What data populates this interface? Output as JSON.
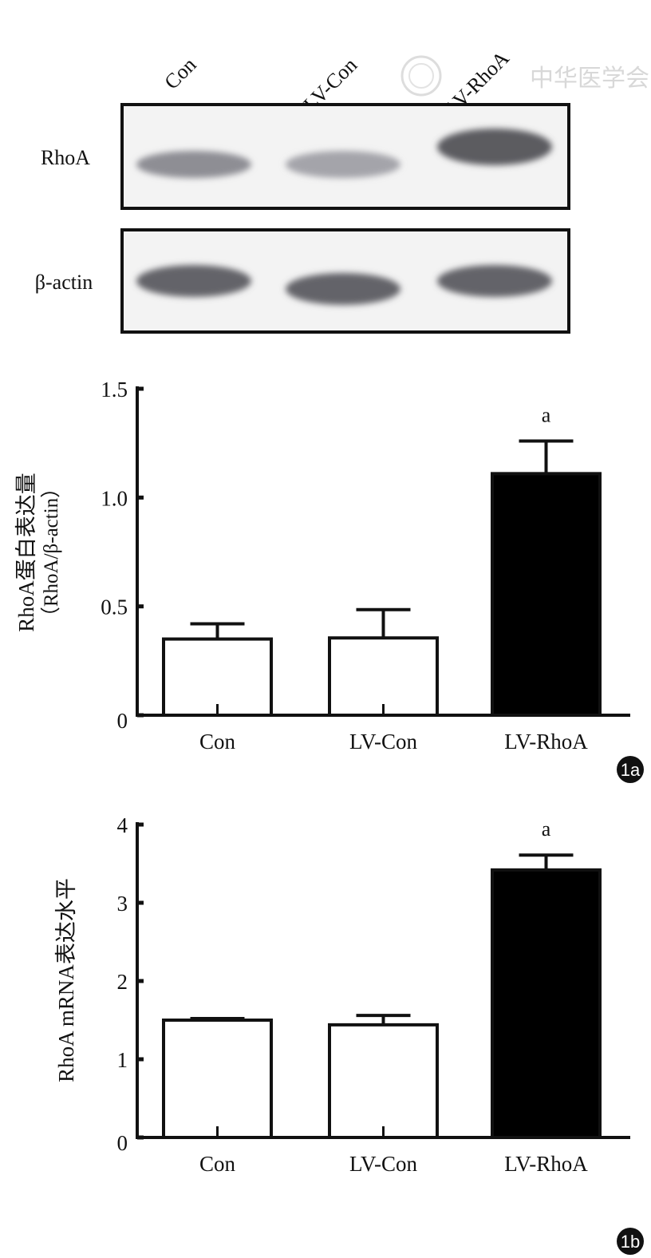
{
  "watermark": {
    "text": "中华医学会"
  },
  "blot": {
    "lanes": [
      "Con",
      "LV-Con",
      "LV-RhoA"
    ],
    "rows": [
      {
        "label": "RhoA",
        "intensity": [
          0.55,
          0.42,
          0.85
        ]
      },
      {
        "label": "β-actin",
        "intensity": [
          0.8,
          0.8,
          0.8
        ]
      }
    ]
  },
  "chart_data": [
    {
      "type": "bar",
      "panel": "1a",
      "categories": [
        "Con",
        "LV-Con",
        "LV-RhoA"
      ],
      "values": [
        0.35,
        0.355,
        1.11
      ],
      "errors": [
        0.07,
        0.13,
        0.15
      ],
      "annotations": [
        "",
        "",
        "a"
      ],
      "colors": [
        "#ffffff",
        "#ffffff",
        "#000000"
      ],
      "ylabel": "RhoA蛋白表达量",
      "ylabel2": "（RhoA/β-actin）",
      "ylim": [
        0,
        1.5
      ],
      "yticks": [
        0,
        0.5,
        1.0,
        1.5
      ],
      "ytick_labels": [
        "0",
        "0.5",
        "1.0",
        "1.5"
      ],
      "grid": false
    },
    {
      "type": "bar",
      "panel": "1b",
      "categories": [
        "Con",
        "LV-Con",
        "LV-RhoA"
      ],
      "values": [
        1.5,
        1.44,
        3.42
      ],
      "errors": [
        0.02,
        0.12,
        0.19
      ],
      "annotations": [
        "",
        "",
        "a"
      ],
      "colors": [
        "#ffffff",
        "#ffffff",
        "#000000"
      ],
      "ylabel": "RhoA mRNA表达水平",
      "ylim": [
        0,
        4
      ],
      "yticks": [
        0,
        1,
        2,
        3,
        4
      ],
      "ytick_labels": [
        "0",
        "1",
        "2",
        "3",
        "4"
      ],
      "grid": false
    }
  ]
}
